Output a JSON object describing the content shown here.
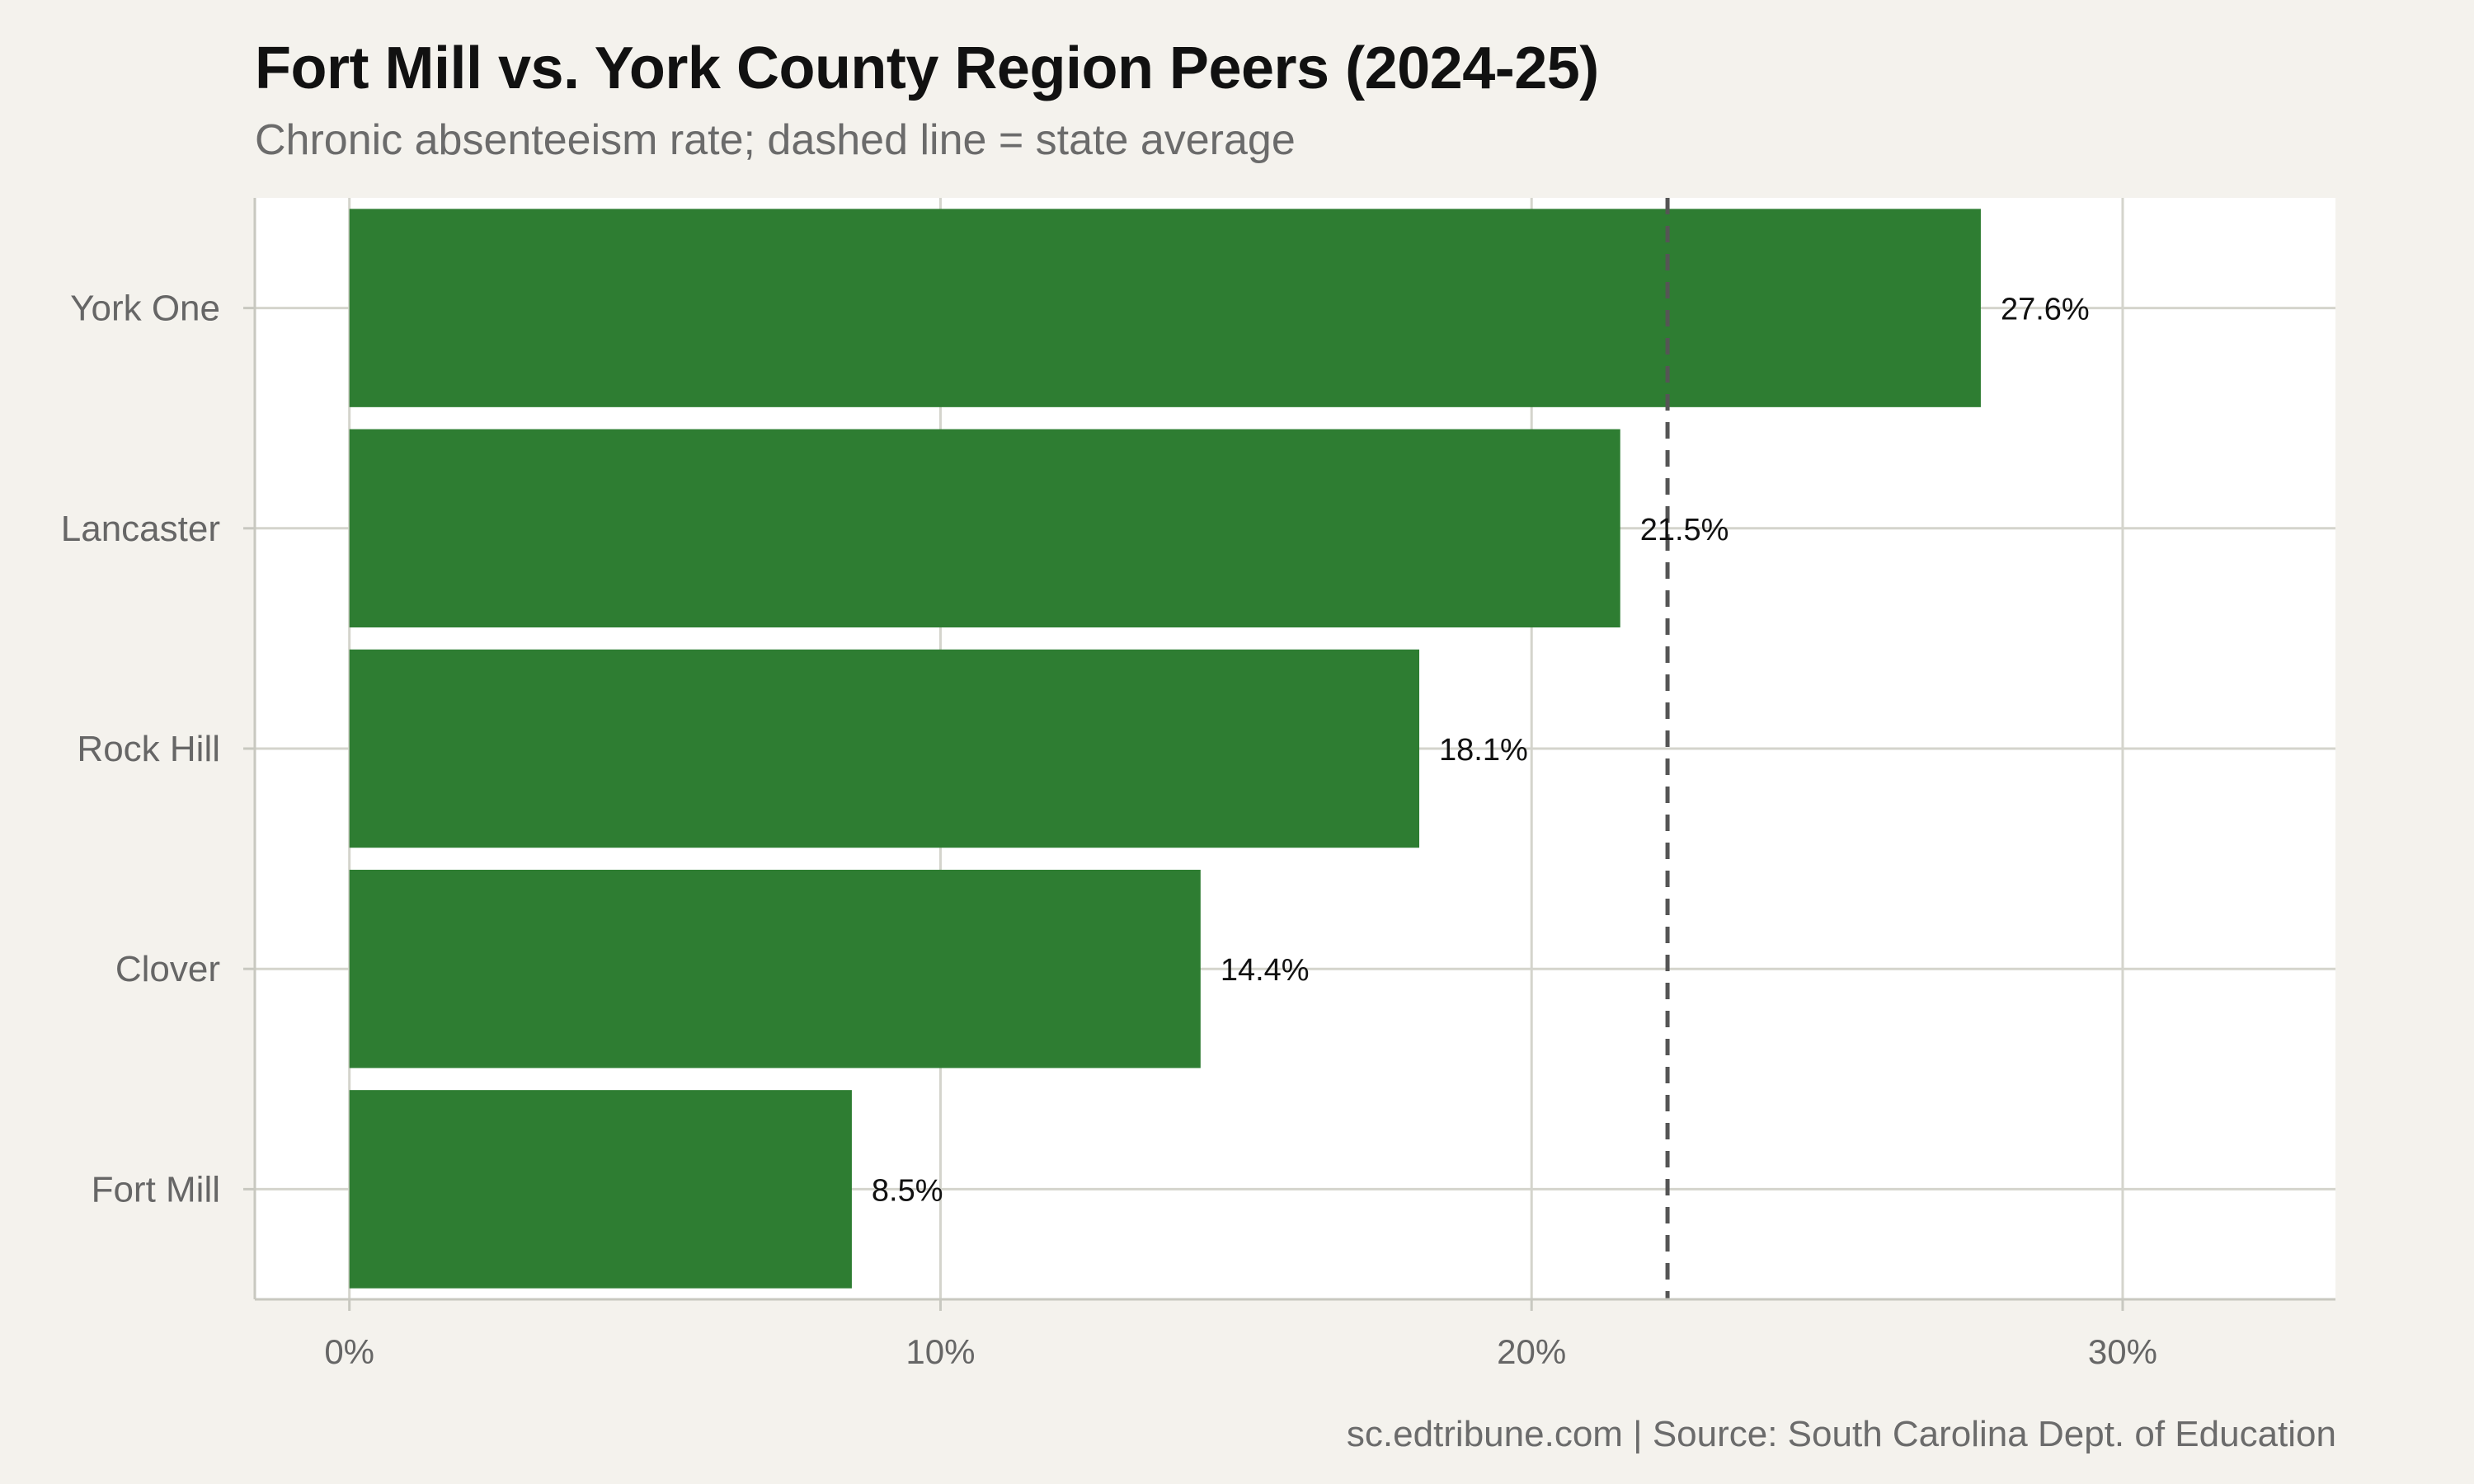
{
  "title": "Fort Mill vs. York County Region Peers (2024-25)",
  "subtitle": "Chronic absenteeism rate; dashed line = state average",
  "caption": "sc.edtribune.com | Source: South Carolina Dept. of Education",
  "chart_data": {
    "type": "bar",
    "orientation": "horizontal",
    "categories": [
      "York One",
      "Lancaster",
      "Rock Hill",
      "Clover",
      "Fort Mill"
    ],
    "values": [
      27.6,
      21.5,
      18.1,
      14.4,
      8.5
    ],
    "value_labels": [
      "27.6%",
      "21.5%",
      "18.1%",
      "14.4%",
      "8.5%"
    ],
    "xticks": [
      0,
      10,
      20,
      30
    ],
    "xtick_labels": [
      "0%",
      "10%",
      "20%",
      "30%"
    ],
    "xlim": [
      -1.6,
      33.6
    ],
    "state_average": 22.3,
    "bar_color": "#2e7d32",
    "reference_line_color": "#555555",
    "grid": true
  }
}
